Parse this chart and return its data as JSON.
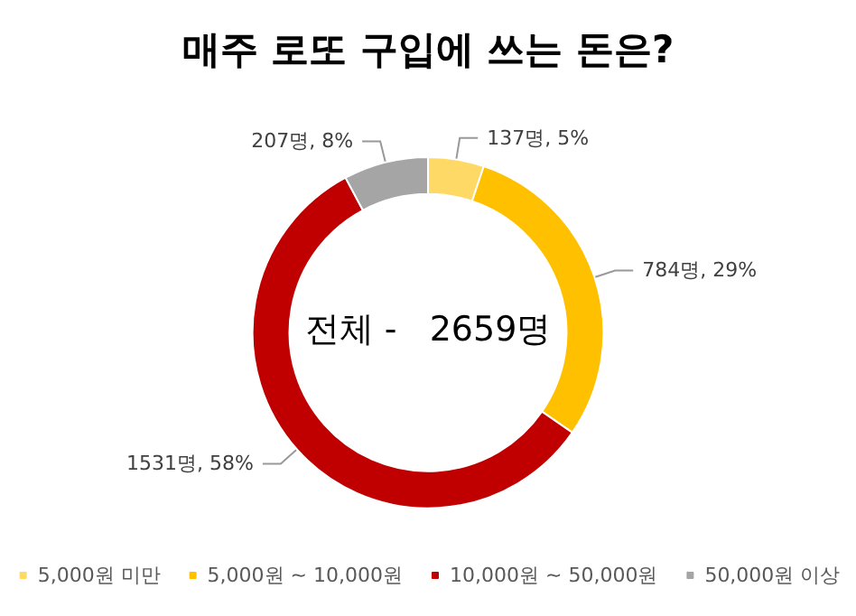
{
  "chart_data": {
    "type": "donut",
    "title": "매주 로또 구입에 쓰는 돈은?",
    "categories": [
      "5,000원 미만",
      "5,000원 ~ 10,000원",
      "10,000원 ~ 50,000원",
      "50,000원 이상"
    ],
    "values": [
      137,
      784,
      1531,
      207
    ],
    "value_labels": [
      "137명, 5%",
      "784명, 29%",
      "1531명, 58%",
      "207명, 8%"
    ],
    "colors": [
      "#ffd966",
      "#ffc000",
      "#c00000",
      "#a5a5a5"
    ],
    "annotations": [
      "전체 -   2659명"
    ],
    "legend": "bottom"
  }
}
